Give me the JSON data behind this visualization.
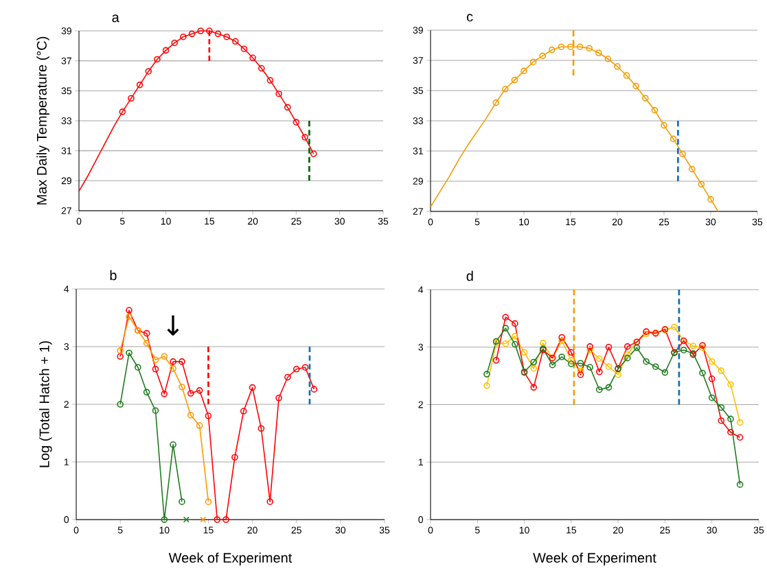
{
  "chart_data": [
    {
      "type": "line",
      "title": "a",
      "ylabel": "Max Daily Temperature (°C)",
      "xlim": [
        0,
        35
      ],
      "ylim": [
        27,
        39
      ],
      "xticks": [
        0,
        5,
        10,
        15,
        20,
        25,
        30,
        35
      ],
      "yticks": [
        27,
        29,
        31,
        33,
        35,
        37,
        39
      ],
      "grid": "y",
      "series": [
        {
          "color": "#ff0000",
          "marker": "none",
          "x": [
            0,
            1,
            2,
            3,
            4,
            5
          ],
          "values": [
            28.3,
            29.3,
            30.4,
            31.5,
            32.6,
            33.6
          ]
        },
        {
          "color": "#ff0000",
          "marker": "circle",
          "x": [
            5,
            6,
            7,
            8,
            9,
            10,
            11,
            12,
            13,
            14,
            15,
            16,
            17,
            18,
            19,
            20,
            21,
            22,
            23,
            24,
            25,
            26,
            27
          ],
          "values": [
            33.6,
            34.5,
            35.4,
            36.3,
            37.1,
            37.7,
            38.2,
            38.6,
            38.8,
            39.0,
            39.0,
            38.8,
            38.6,
            38.3,
            37.8,
            37.2,
            36.5,
            35.7,
            34.8,
            33.9,
            32.9,
            31.9,
            30.8
          ]
        },
        {
          "color": "#ff0000",
          "marker": "none",
          "line_style": "dashed",
          "x": [
            15,
            15
          ],
          "values": [
            37,
            39
          ]
        },
        {
          "color": "#006400",
          "marker": "none",
          "line_style": "dashed",
          "x": [
            26.5,
            26.5
          ],
          "values": [
            29,
            33
          ]
        }
      ]
    },
    {
      "type": "line",
      "title": "c",
      "xlim": [
        0,
        35
      ],
      "ylim": [
        27,
        39
      ],
      "xticks": [
        0,
        5,
        10,
        15,
        20,
        25,
        30,
        35
      ],
      "yticks": [
        27,
        29,
        31,
        33,
        35,
        37,
        39
      ],
      "grid": "y",
      "series": [
        {
          "color": "#f59b00",
          "marker": "none",
          "x": [
            0,
            1,
            2,
            3,
            4,
            5,
            6,
            7
          ],
          "values": [
            27.3,
            28.3,
            29.3,
            30.4,
            31.4,
            32.3,
            33.2,
            34.2
          ]
        },
        {
          "color": "#f59b00",
          "marker": "circle",
          "x": [
            7,
            8,
            9,
            10,
            11,
            12,
            13,
            14,
            15,
            16,
            17,
            18,
            19,
            20,
            21,
            22,
            23,
            24,
            25,
            26,
            27,
            28,
            29,
            30
          ],
          "values": [
            34.2,
            35.1,
            35.7,
            36.3,
            36.9,
            37.3,
            37.7,
            37.9,
            37.9,
            37.9,
            37.8,
            37.5,
            37.1,
            36.6,
            36.0,
            35.3,
            34.5,
            33.7,
            32.7,
            31.8,
            30.8,
            29.8,
            28.8,
            27.8
          ]
        },
        {
          "color": "#f59b00",
          "marker": "none",
          "x": [
            30,
            30.8
          ],
          "values": [
            27.8,
            27
          ]
        },
        {
          "color": "#f59b00",
          "marker": "none",
          "line_style": "dashed",
          "x": [
            15.3,
            15.3
          ],
          "values": [
            36,
            39
          ]
        },
        {
          "color": "#0070c0",
          "marker": "none",
          "line_style": "dashed",
          "x": [
            26.5,
            26.5
          ],
          "values": [
            29,
            33
          ]
        }
      ]
    },
    {
      "type": "line",
      "title": "b",
      "ylabel": "Log (Total Hatch + 1)",
      "xlabel": "Week of Experiment",
      "xlim": [
        0,
        35
      ],
      "ylim": [
        0,
        4
      ],
      "xticks": [
        0,
        5,
        10,
        15,
        20,
        25,
        30,
        35
      ],
      "yticks": [
        0,
        1,
        2,
        3,
        4
      ],
      "grid": "y",
      "annotations": [
        "↓"
      ],
      "series": [
        {
          "color": "#ff0000",
          "marker": "circle",
          "x": [
            5,
            6,
            7,
            8,
            9,
            10,
            11,
            12,
            13,
            14,
            15,
            16,
            17,
            18,
            19,
            20,
            21,
            22,
            23,
            24,
            25,
            26,
            27
          ],
          "values": [
            2.83,
            3.63,
            3.28,
            3.23,
            2.61,
            2.18,
            2.74,
            2.74,
            2.19,
            2.24,
            1.8,
            0,
            0,
            1.08,
            1.88,
            2.29,
            1.58,
            0.31,
            2.11,
            2.47,
            2.61,
            2.64,
            2.26
          ]
        },
        {
          "color": "#ff9900",
          "marker": "circle",
          "x": [
            5,
            6,
            7,
            8,
            9,
            10,
            11,
            12,
            13,
            14,
            15
          ],
          "values": [
            2.93,
            3.52,
            3.28,
            3.06,
            2.77,
            2.83,
            2.62,
            2.3,
            1.81,
            1.63,
            0.31
          ]
        },
        {
          "color": "#1e7b1e",
          "marker": "circle",
          "x": [
            5,
            6,
            7,
            8,
            9,
            10,
            11,
            12
          ],
          "values": [
            2.0,
            2.89,
            2.64,
            2.21,
            1.89,
            0,
            1.3,
            0.31
          ]
        },
        {
          "type": "scatter",
          "color": "#1e7b1e",
          "marker": "cross",
          "x": [
            12.5
          ],
          "values": [
            0
          ]
        },
        {
          "type": "scatter",
          "color": "#ff9900",
          "marker": "cross",
          "x": [
            14.4
          ],
          "values": [
            0
          ]
        },
        {
          "color": "#ff0000",
          "marker": "none",
          "line_style": "dashed",
          "x": [
            15,
            15
          ],
          "values": [
            2,
            3
          ]
        },
        {
          "color": "#0070c0",
          "marker": "none",
          "line_style": "dashed",
          "x": [
            26.5,
            26.5
          ],
          "values": [
            2,
            3
          ]
        }
      ]
    },
    {
      "type": "line",
      "title": "d",
      "xlabel": "Week of Experiment",
      "xlim": [
        0,
        35
      ],
      "ylim": [
        0,
        4
      ],
      "xticks": [
        0,
        5,
        10,
        15,
        20,
        25,
        30,
        35
      ],
      "yticks": [
        0,
        1,
        2,
        3,
        4
      ],
      "grid": "y",
      "series": [
        {
          "color": "#ffc000",
          "marker": "circle",
          "x": [
            6,
            7,
            8,
            9,
            10,
            11,
            12,
            13,
            14,
            15,
            16,
            17,
            18,
            19,
            20,
            21,
            22,
            23,
            24,
            25,
            26,
            27,
            28,
            29,
            30,
            31,
            32,
            33
          ],
          "values": [
            2.33,
            3.07,
            3.06,
            3.19,
            2.91,
            2.63,
            3.07,
            2.81,
            3.11,
            2.77,
            2.59,
            2.95,
            2.8,
            2.66,
            2.52,
            2.87,
            3.09,
            3.23,
            3.25,
            3.3,
            3.35,
            3.11,
            3.02,
            2.99,
            2.75,
            2.59,
            2.35,
            1.69
          ]
        },
        {
          "color": "#ff0000",
          "marker": "circle",
          "x": [
            7,
            8,
            9,
            10,
            11,
            12,
            13,
            14,
            15,
            16,
            17,
            18,
            19,
            20,
            21,
            22,
            23,
            24,
            25,
            26,
            27,
            28,
            29,
            30,
            31,
            32,
            33
          ],
          "values": [
            2.77,
            3.52,
            3.41,
            2.56,
            2.3,
            2.95,
            2.81,
            3.17,
            2.91,
            2.52,
            3.01,
            2.57,
            3.0,
            2.63,
            3.01,
            3.09,
            3.27,
            3.24,
            3.31,
            2.9,
            3.11,
            2.87,
            3.03,
            2.45,
            1.72,
            1.52,
            1.43
          ]
        },
        {
          "color": "#1e7b1e",
          "marker": "circle",
          "x": [
            6,
            7,
            8,
            9,
            10,
            11,
            12,
            13,
            14,
            15,
            16,
            17,
            18,
            19,
            20,
            21,
            22,
            23,
            24,
            25,
            26,
            27,
            28,
            29,
            30,
            31,
            32,
            33
          ],
          "values": [
            2.53,
            3.1,
            3.33,
            3.05,
            2.57,
            2.74,
            2.97,
            2.69,
            2.83,
            2.71,
            2.72,
            2.65,
            2.26,
            2.3,
            2.62,
            2.81,
            2.99,
            2.75,
            2.66,
            2.56,
            2.91,
            2.95,
            2.89,
            2.55,
            2.12,
            1.95,
            1.75,
            0.61
          ]
        },
        {
          "color": "#f59b00",
          "marker": "none",
          "line_style": "dashed",
          "x": [
            15.3,
            15.3
          ],
          "values": [
            2,
            4
          ]
        },
        {
          "color": "#0070c0",
          "marker": "none",
          "line_style": "dashed",
          "x": [
            26.5,
            26.5
          ],
          "values": [
            2,
            4
          ]
        }
      ]
    }
  ]
}
